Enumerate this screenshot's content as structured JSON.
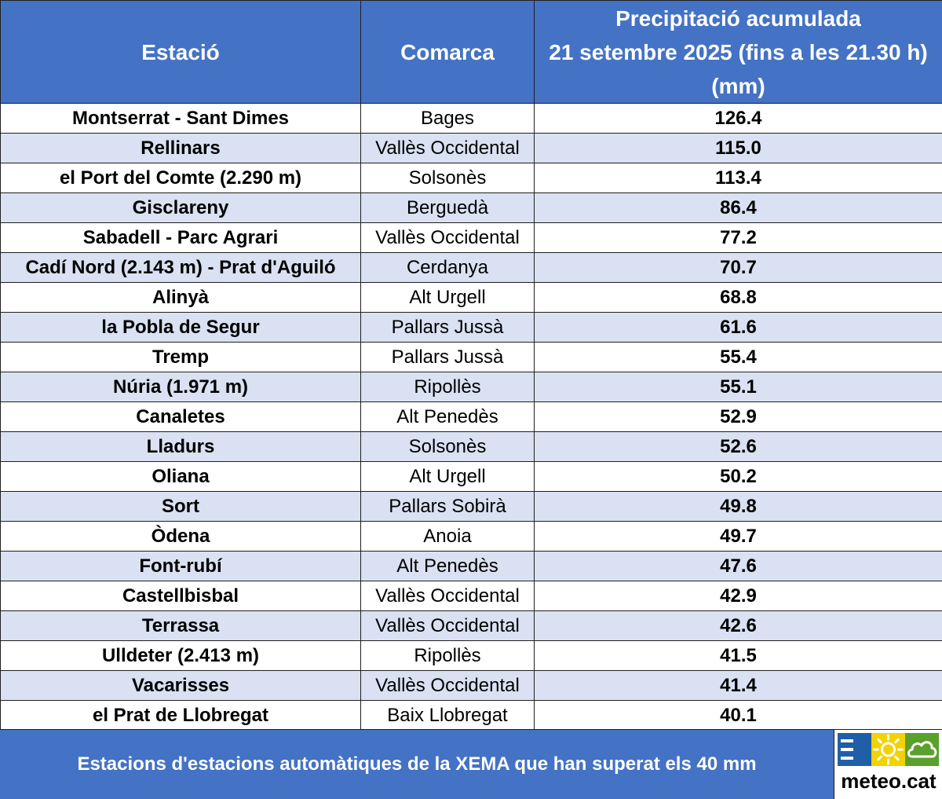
{
  "table": {
    "headers": {
      "station": "Estació",
      "county": "Comarca",
      "precip_lines": [
        "Precipitació acumulada",
        "21 setembre 2025 (fins a les 21.30 h)",
        "(mm)"
      ]
    },
    "rows": [
      {
        "station": "Montserrat - Sant Dimes",
        "county": "Bages",
        "value": "126.4"
      },
      {
        "station": "Rellinars",
        "county": "Vallès Occidental",
        "value": "115.0"
      },
      {
        "station": "el Port del Comte (2.290 m)",
        "county": "Solsonès",
        "value": "113.4"
      },
      {
        "station": "Gisclareny",
        "county": "Berguedà",
        "value": "86.4"
      },
      {
        "station": "Sabadell - Parc Agrari",
        "county": "Vallès Occidental",
        "value": "77.2"
      },
      {
        "station": "Cadí Nord (2.143 m) - Prat d'Aguiló",
        "county": "Cerdanya",
        "value": "70.7"
      },
      {
        "station": "Alinyà",
        "county": "Alt Urgell",
        "value": "68.8"
      },
      {
        "station": "la Pobla de Segur",
        "county": "Pallars Jussà",
        "value": "61.6"
      },
      {
        "station": "Tremp",
        "county": "Pallars Jussà",
        "value": "55.4"
      },
      {
        "station": "Núria (1.971 m)",
        "county": "Ripollès",
        "value": "55.1"
      },
      {
        "station": "Canaletes",
        "county": "Alt Penedès",
        "value": "52.9"
      },
      {
        "station": "Lladurs",
        "county": "Solsonès",
        "value": "52.6"
      },
      {
        "station": "Oliana",
        "county": "Alt Urgell",
        "value": "50.2"
      },
      {
        "station": "Sort",
        "county": "Pallars Sobirà",
        "value": "49.8"
      },
      {
        "station": "Òdena",
        "county": "Anoia",
        "value": "49.7"
      },
      {
        "station": "Font-rubí",
        "county": "Alt Penedès",
        "value": "47.6"
      },
      {
        "station": "Castellbisbal",
        "county": "Vallès Occidental",
        "value": "42.9"
      },
      {
        "station": "Terrassa",
        "county": "Vallès Occidental",
        "value": "42.6"
      },
      {
        "station": "Ulldeter (2.413 m)",
        "county": "Ripollès",
        "value": "41.5"
      },
      {
        "station": "Vacarisses",
        "county": "Vallès Occidental",
        "value": "41.4"
      },
      {
        "station": "el Prat de Llobregat",
        "county": "Baix Llobregat",
        "value": "40.1"
      }
    ]
  },
  "footer": {
    "caption": "Estacions d'estacions automàtiques de la XEMA que han superat els 40 mm"
  },
  "logo": {
    "text": "meteo.cat",
    "icons": [
      "menu-lines-icon",
      "sun-icon",
      "cloud-icon"
    ],
    "colors": {
      "blue": "#1f5fa8",
      "yellow": "#f2d200",
      "green": "#5aa02c"
    }
  },
  "colors": {
    "header_bg": "#4472c4",
    "header_text": "#ffffff",
    "row_alt_bg": "#d9e1f2",
    "row_bg": "#ffffff",
    "border": "#1f1f1f"
  },
  "chart_data": {
    "type": "table",
    "title": "Precipitació acumulada 21 setembre 2025 (fins a les 21.30 h) (mm)",
    "columns": [
      "Estació",
      "Comarca",
      "Precipitació acumulada 21 setembre 2025 (fins a les 21.30 h) (mm)"
    ],
    "categories": [
      "Montserrat - Sant Dimes",
      "Rellinars",
      "el Port del Comte (2.290 m)",
      "Gisclareny",
      "Sabadell - Parc Agrari",
      "Cadí Nord (2.143 m) - Prat d'Aguiló",
      "Alinyà",
      "la Pobla de Segur",
      "Tremp",
      "Núria (1.971 m)",
      "Canaletes",
      "Lladurs",
      "Oliana",
      "Sort",
      "Òdena",
      "Font-rubí",
      "Castellbisbal",
      "Terrassa",
      "Ulldeter (2.413 m)",
      "Vacarisses",
      "el Prat de Llobregat"
    ],
    "values": [
      126.4,
      115.0,
      113.4,
      86.4,
      77.2,
      70.7,
      68.8,
      61.6,
      55.4,
      55.1,
      52.9,
      52.6,
      50.2,
      49.8,
      49.7,
      47.6,
      42.9,
      42.6,
      41.5,
      41.4,
      40.1
    ]
  }
}
